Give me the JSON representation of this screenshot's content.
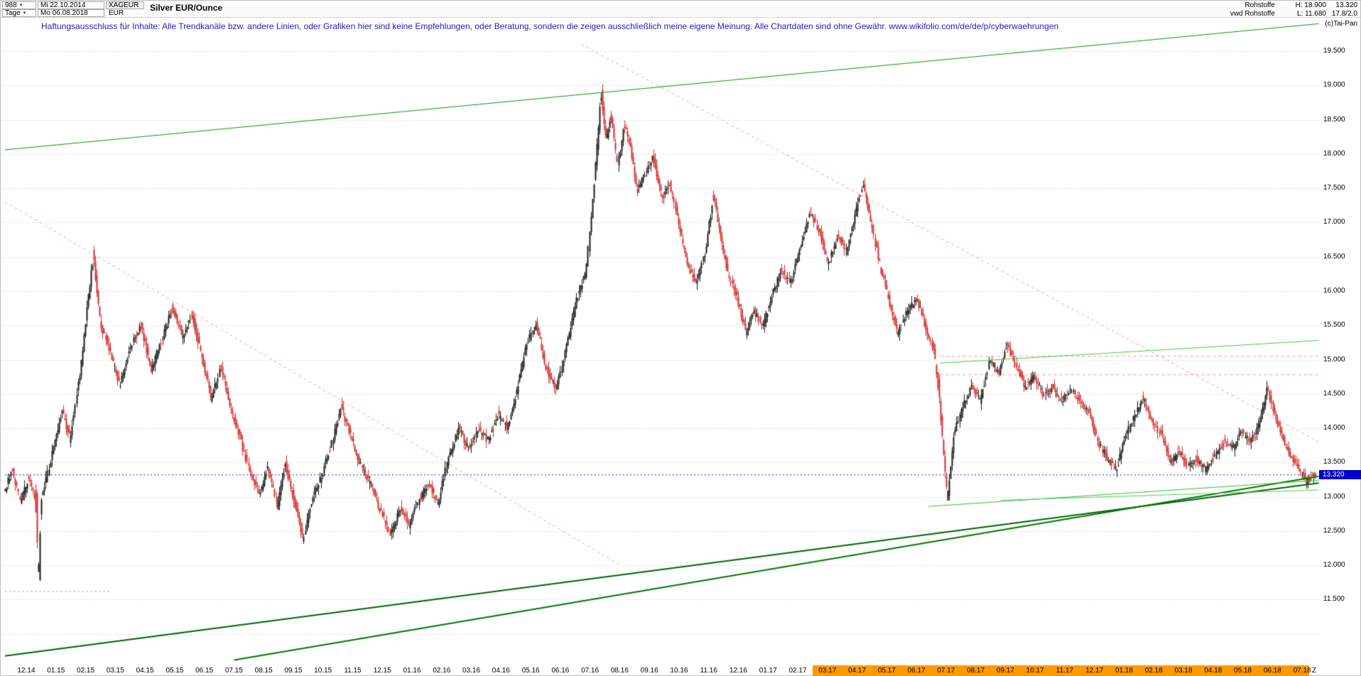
{
  "header": {
    "bars_count": "988",
    "start_date": "Mi 22.10.2014",
    "symbol": "XAGEUR",
    "title": "Silver EUR/Ounce",
    "timeframe": "Tage",
    "end_date": "Mo 06.08.2018",
    "currency": "EUR",
    "feed": "Rohstoffe",
    "feed2": "vwd Rohstoffe",
    "high_label": "H: 18.900",
    "low_label": "L: 11.680",
    "last_price": "13.320",
    "info2": "17.8/2.0",
    "copyright": "(c)Tai-Pan"
  },
  "disclaimer": "Haftungsausschluss für Inhalte: Alle Trendkanäle bzw. andere Linien, oder Grafiken hier sind keine Empfehlungen, oder Beratung, sondern die zeigen ausschließlich meine eigene Meinung. Alle Chartdaten sind ohne Gewähr.  www.wikifolio.com/de/de/p/cyberwaehrungen",
  "chart_data": {
    "type": "candlestick",
    "title": "Silver EUR/Ounce",
    "timeframe": "daily",
    "xlabel": "",
    "ylabel": "EUR per Ounce",
    "ylim": [
      10.5,
      19.9
    ],
    "grid": true,
    "high": 18.9,
    "low": 11.68,
    "last_price": 13.32,
    "y_ticks": [
      "19.500",
      "19.000",
      "18.500",
      "18.000",
      "17.500",
      "17.000",
      "16.500",
      "16.000",
      "15.500",
      "15.000",
      "14.500",
      "14.000",
      "13.500",
      "13.000",
      "12.500",
      "12.000",
      "11.500"
    ],
    "x_labels": [
      "12.14",
      "01.15",
      "02.15",
      "03.15",
      "04.15",
      "05.15",
      "06.15",
      "07.15",
      "08.15",
      "09.15",
      "10.15",
      "11.15",
      "12.15",
      "01.16",
      "02.16",
      "03.16",
      "04.16",
      "05.16",
      "06.16",
      "07.16",
      "08.16",
      "09.16",
      "10.16",
      "11.16",
      "12.16",
      "01.17",
      "02.17",
      "03.17",
      "04.17",
      "05.17",
      "06.17",
      "07.17",
      "08.17",
      "09.17",
      "10.17",
      "11.17",
      "12.17",
      "01.18",
      "02.18",
      "03.18",
      "04.18",
      "05.18",
      "06.18",
      "07.18"
    ],
    "x_highlight_from": "03.17",
    "end_marker": "Z",
    "colors": {
      "up": "#1a1a1a",
      "down": "#d62b2b",
      "grid": "#bababa",
      "band": "#ff9900",
      "tag_bg": "#0000cc",
      "tag_text": "#ffffff"
    },
    "price_path": [
      [
        0.0,
        13.1
      ],
      [
        0.006,
        13.4
      ],
      [
        0.012,
        12.95
      ],
      [
        0.018,
        13.25
      ],
      [
        0.024,
        12.95
      ],
      [
        0.026,
        11.7
      ],
      [
        0.028,
        12.95
      ],
      [
        0.034,
        13.45
      ],
      [
        0.044,
        14.25
      ],
      [
        0.05,
        13.85
      ],
      [
        0.058,
        14.9
      ],
      [
        0.065,
        16.1
      ],
      [
        0.068,
        16.5
      ],
      [
        0.073,
        15.55
      ],
      [
        0.08,
        15.15
      ],
      [
        0.088,
        14.6
      ],
      [
        0.096,
        15.2
      ],
      [
        0.104,
        15.5
      ],
      [
        0.112,
        14.85
      ],
      [
        0.12,
        15.3
      ],
      [
        0.128,
        15.75
      ],
      [
        0.136,
        15.35
      ],
      [
        0.143,
        15.65
      ],
      [
        0.151,
        15.0
      ],
      [
        0.158,
        14.45
      ],
      [
        0.165,
        14.9
      ],
      [
        0.172,
        14.3
      ],
      [
        0.18,
        13.85
      ],
      [
        0.188,
        13.3
      ],
      [
        0.195,
        13.05
      ],
      [
        0.201,
        13.45
      ],
      [
        0.208,
        12.85
      ],
      [
        0.214,
        13.5
      ],
      [
        0.221,
        12.95
      ],
      [
        0.228,
        12.4
      ],
      [
        0.235,
        13.0
      ],
      [
        0.242,
        13.3
      ],
      [
        0.25,
        13.8
      ],
      [
        0.257,
        14.3
      ],
      [
        0.264,
        13.9
      ],
      [
        0.272,
        13.45
      ],
      [
        0.279,
        13.2
      ],
      [
        0.287,
        12.8
      ],
      [
        0.295,
        12.45
      ],
      [
        0.302,
        12.85
      ],
      [
        0.309,
        12.6
      ],
      [
        0.317,
        13.0
      ],
      [
        0.324,
        13.2
      ],
      [
        0.331,
        12.9
      ],
      [
        0.339,
        13.6
      ],
      [
        0.347,
        14.0
      ],
      [
        0.354,
        13.7
      ],
      [
        0.362,
        14.0
      ],
      [
        0.369,
        13.8
      ],
      [
        0.377,
        14.2
      ],
      [
        0.384,
        14.0
      ],
      [
        0.391,
        14.55
      ],
      [
        0.399,
        15.25
      ],
      [
        0.406,
        15.5
      ],
      [
        0.413,
        14.9
      ],
      [
        0.421,
        14.6
      ],
      [
        0.429,
        15.2
      ],
      [
        0.437,
        15.9
      ],
      [
        0.444,
        16.3
      ],
      [
        0.45,
        17.6
      ],
      [
        0.4555,
        18.9
      ],
      [
        0.459,
        18.2
      ],
      [
        0.463,
        18.55
      ],
      [
        0.468,
        17.85
      ],
      [
        0.473,
        18.4
      ],
      [
        0.478,
        18.1
      ],
      [
        0.483,
        17.45
      ],
      [
        0.489,
        17.7
      ],
      [
        0.495,
        17.95
      ],
      [
        0.502,
        17.35
      ],
      [
        0.508,
        17.55
      ],
      [
        0.515,
        16.95
      ],
      [
        0.522,
        16.35
      ],
      [
        0.528,
        16.1
      ],
      [
        0.535,
        16.6
      ],
      [
        0.541,
        17.4
      ],
      [
        0.547,
        16.75
      ],
      [
        0.553,
        16.2
      ],
      [
        0.559,
        15.9
      ],
      [
        0.566,
        15.4
      ],
      [
        0.572,
        15.7
      ],
      [
        0.579,
        15.5
      ],
      [
        0.586,
        15.95
      ],
      [
        0.593,
        16.3
      ],
      [
        0.6,
        16.1
      ],
      [
        0.608,
        16.7
      ],
      [
        0.615,
        17.15
      ],
      [
        0.622,
        16.85
      ],
      [
        0.629,
        16.4
      ],
      [
        0.636,
        16.8
      ],
      [
        0.643,
        16.6
      ],
      [
        0.65,
        17.2
      ],
      [
        0.656,
        17.55
      ],
      [
        0.663,
        16.85
      ],
      [
        0.669,
        16.3
      ],
      [
        0.676,
        15.8
      ],
      [
        0.682,
        15.4
      ],
      [
        0.689,
        15.7
      ],
      [
        0.696,
        15.9
      ],
      [
        0.703,
        15.5
      ],
      [
        0.709,
        15.15
      ],
      [
        0.713,
        14.55
      ],
      [
        0.717,
        13.55
      ],
      [
        0.72,
        12.95
      ],
      [
        0.725,
        13.95
      ],
      [
        0.731,
        14.3
      ],
      [
        0.738,
        14.6
      ],
      [
        0.745,
        14.4
      ],
      [
        0.752,
        15.0
      ],
      [
        0.759,
        14.8
      ],
      [
        0.765,
        15.25
      ],
      [
        0.772,
        14.9
      ],
      [
        0.779,
        14.6
      ],
      [
        0.786,
        14.75
      ],
      [
        0.793,
        14.5
      ],
      [
        0.8,
        14.6
      ],
      [
        0.807,
        14.4
      ],
      [
        0.814,
        14.55
      ],
      [
        0.821,
        14.4
      ],
      [
        0.828,
        14.2
      ],
      [
        0.835,
        13.8
      ],
      [
        0.842,
        13.55
      ],
      [
        0.849,
        13.4
      ],
      [
        0.856,
        13.9
      ],
      [
        0.863,
        14.2
      ],
      [
        0.869,
        14.45
      ],
      [
        0.876,
        14.1
      ],
      [
        0.883,
        13.9
      ],
      [
        0.89,
        13.5
      ],
      [
        0.897,
        13.65
      ],
      [
        0.903,
        13.45
      ],
      [
        0.91,
        13.55
      ],
      [
        0.917,
        13.4
      ],
      [
        0.924,
        13.6
      ],
      [
        0.931,
        13.8
      ],
      [
        0.938,
        13.7
      ],
      [
        0.944,
        13.95
      ],
      [
        0.951,
        13.8
      ],
      [
        0.958,
        14.05
      ],
      [
        0.964,
        14.6
      ],
      [
        0.97,
        14.15
      ],
      [
        0.976,
        13.85
      ],
      [
        0.982,
        13.6
      ],
      [
        0.988,
        13.45
      ],
      [
        0.994,
        13.22
      ],
      [
        1.0,
        13.32
      ]
    ],
    "annotations": {
      "lines": [
        {
          "name": "downtrend-long",
          "color": "#ff9a9a",
          "width": 1,
          "dash": [
            4,
            4
          ],
          "layer": "under",
          "points": [
            [
              0.44,
              19.6
            ],
            [
              1.003,
              13.8
            ]
          ]
        },
        {
          "name": "downtrend-2015",
          "color": "#ff9a9a",
          "width": 1,
          "dash": [
            4,
            4
          ],
          "layer": "under",
          "points": [
            [
              0.0,
              17.3
            ],
            [
              0.47,
              12.0
            ]
          ]
        },
        {
          "name": "resistance-horizontal-1",
          "color": "#ff8c8c",
          "width": 1,
          "dash": [
            4,
            4
          ],
          "layer": "under",
          "points": [
            [
              0.714,
              15.05
            ],
            [
              1.003,
              15.05
            ]
          ]
        },
        {
          "name": "resistance-horizontal-2",
          "color": "#ff8c8c",
          "width": 1,
          "dash": [
            4,
            4
          ],
          "layer": "under",
          "points": [
            [
              0.714,
              14.78
            ],
            [
              1.003,
              14.78
            ]
          ]
        },
        {
          "name": "last-price-line",
          "color": "#2222cc",
          "width": 1,
          "dash": [
            2,
            3
          ],
          "layer": "under",
          "points": [
            [
              0,
              13.32
            ],
            [
              1.003,
              13.32
            ]
          ]
        },
        {
          "name": "low-marker",
          "color": "#66dd66",
          "width": 1,
          "dash": [
            3,
            3
          ],
          "layer": "under",
          "points": [
            [
              0,
              11.62
            ],
            [
              0.08,
              11.62
            ]
          ]
        },
        {
          "name": "upper-channel",
          "color": "#009900",
          "width": 1,
          "dash": [],
          "layer": "over",
          "points": [
            [
              0,
              18.06
            ],
            [
              1.003,
              19.9
            ]
          ]
        },
        {
          "name": "support-main",
          "color": "#006600",
          "width": 2,
          "dash": [],
          "layer": "over",
          "points": [
            [
              0,
              10.68
            ],
            [
              1.003,
              13.2
            ]
          ]
        },
        {
          "name": "support-steep",
          "color": "#007700",
          "width": 2,
          "dash": [],
          "layer": "over",
          "points": [
            [
              0.175,
              10.62
            ],
            [
              1.003,
              13.3
            ]
          ]
        },
        {
          "name": "minor-support-1",
          "color": "#33bb33",
          "width": 1,
          "dash": [],
          "layer": "over",
          "points": [
            [
              0.705,
              12.86
            ],
            [
              1.003,
              13.24
            ]
          ]
        },
        {
          "name": "minor-support-2",
          "color": "#55cc55",
          "width": 1,
          "dash": [],
          "layer": "over",
          "points": [
            [
              0.76,
              12.95
            ],
            [
              1.003,
              13.1
            ]
          ]
        },
        {
          "name": "resistance-light-green",
          "color": "#44cc44",
          "width": 1,
          "dash": [],
          "layer": "over",
          "points": [
            [
              0.714,
              14.95
            ],
            [
              1.003,
              15.28
            ]
          ]
        }
      ]
    }
  }
}
